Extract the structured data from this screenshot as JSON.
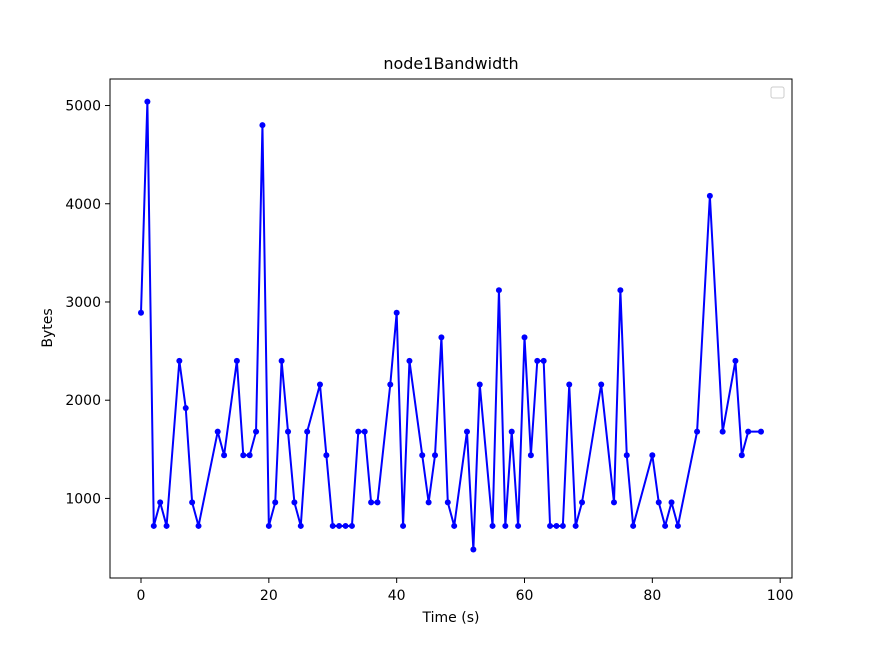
{
  "chart_data": {
    "type": "line",
    "title": "node1Bandwidth",
    "xlabel": "Time (s)",
    "ylabel": "Bytes",
    "xlim": [
      -4.85,
      101.85
    ],
    "ylim": [
      190,
      5270
    ],
    "xticks": [
      0,
      20,
      40,
      60,
      80,
      100
    ],
    "yticks": [
      1000,
      2000,
      3000,
      4000,
      5000
    ],
    "grid": false,
    "legend": "top-right (empty)",
    "series": [
      {
        "color": "#0000ff",
        "marker": "circle",
        "x": [
          0,
          1,
          2,
          3,
          4,
          6,
          7,
          8,
          9,
          12,
          13,
          15,
          16,
          17,
          18,
          19,
          20,
          21,
          22,
          23,
          24,
          25,
          26,
          28,
          29,
          30,
          31,
          32,
          33,
          34,
          35,
          36,
          37,
          39,
          40,
          41,
          42,
          44,
          45,
          46,
          47,
          48,
          49,
          51,
          52,
          53,
          55,
          56,
          57,
          58,
          59,
          60,
          61,
          62,
          63,
          64,
          65,
          66,
          67,
          68,
          69,
          72,
          74,
          75,
          76,
          77,
          80,
          81,
          82,
          83,
          84,
          87,
          89,
          91,
          93,
          94,
          95,
          97
        ],
        "y": [
          2890,
          5040,
          720,
          960,
          720,
          2400,
          1920,
          960,
          720,
          1680,
          1440,
          2400,
          1440,
          1440,
          1680,
          4800,
          720,
          960,
          2400,
          1680,
          960,
          720,
          1680,
          2160,
          1440,
          720,
          720,
          720,
          720,
          1680,
          1680,
          960,
          960,
          2160,
          2890,
          720,
          2400,
          1440,
          960,
          1440,
          2640,
          960,
          720,
          1680,
          480,
          2160,
          720,
          3120,
          720,
          1680,
          720,
          2640,
          1440,
          2400,
          2400,
          720,
          720,
          720,
          2160,
          720,
          960,
          2160,
          960,
          3120,
          1440,
          720,
          1440,
          960,
          720,
          960,
          720,
          1680,
          4080,
          1680,
          2400,
          1440,
          1680,
          1680
        ]
      }
    ]
  }
}
